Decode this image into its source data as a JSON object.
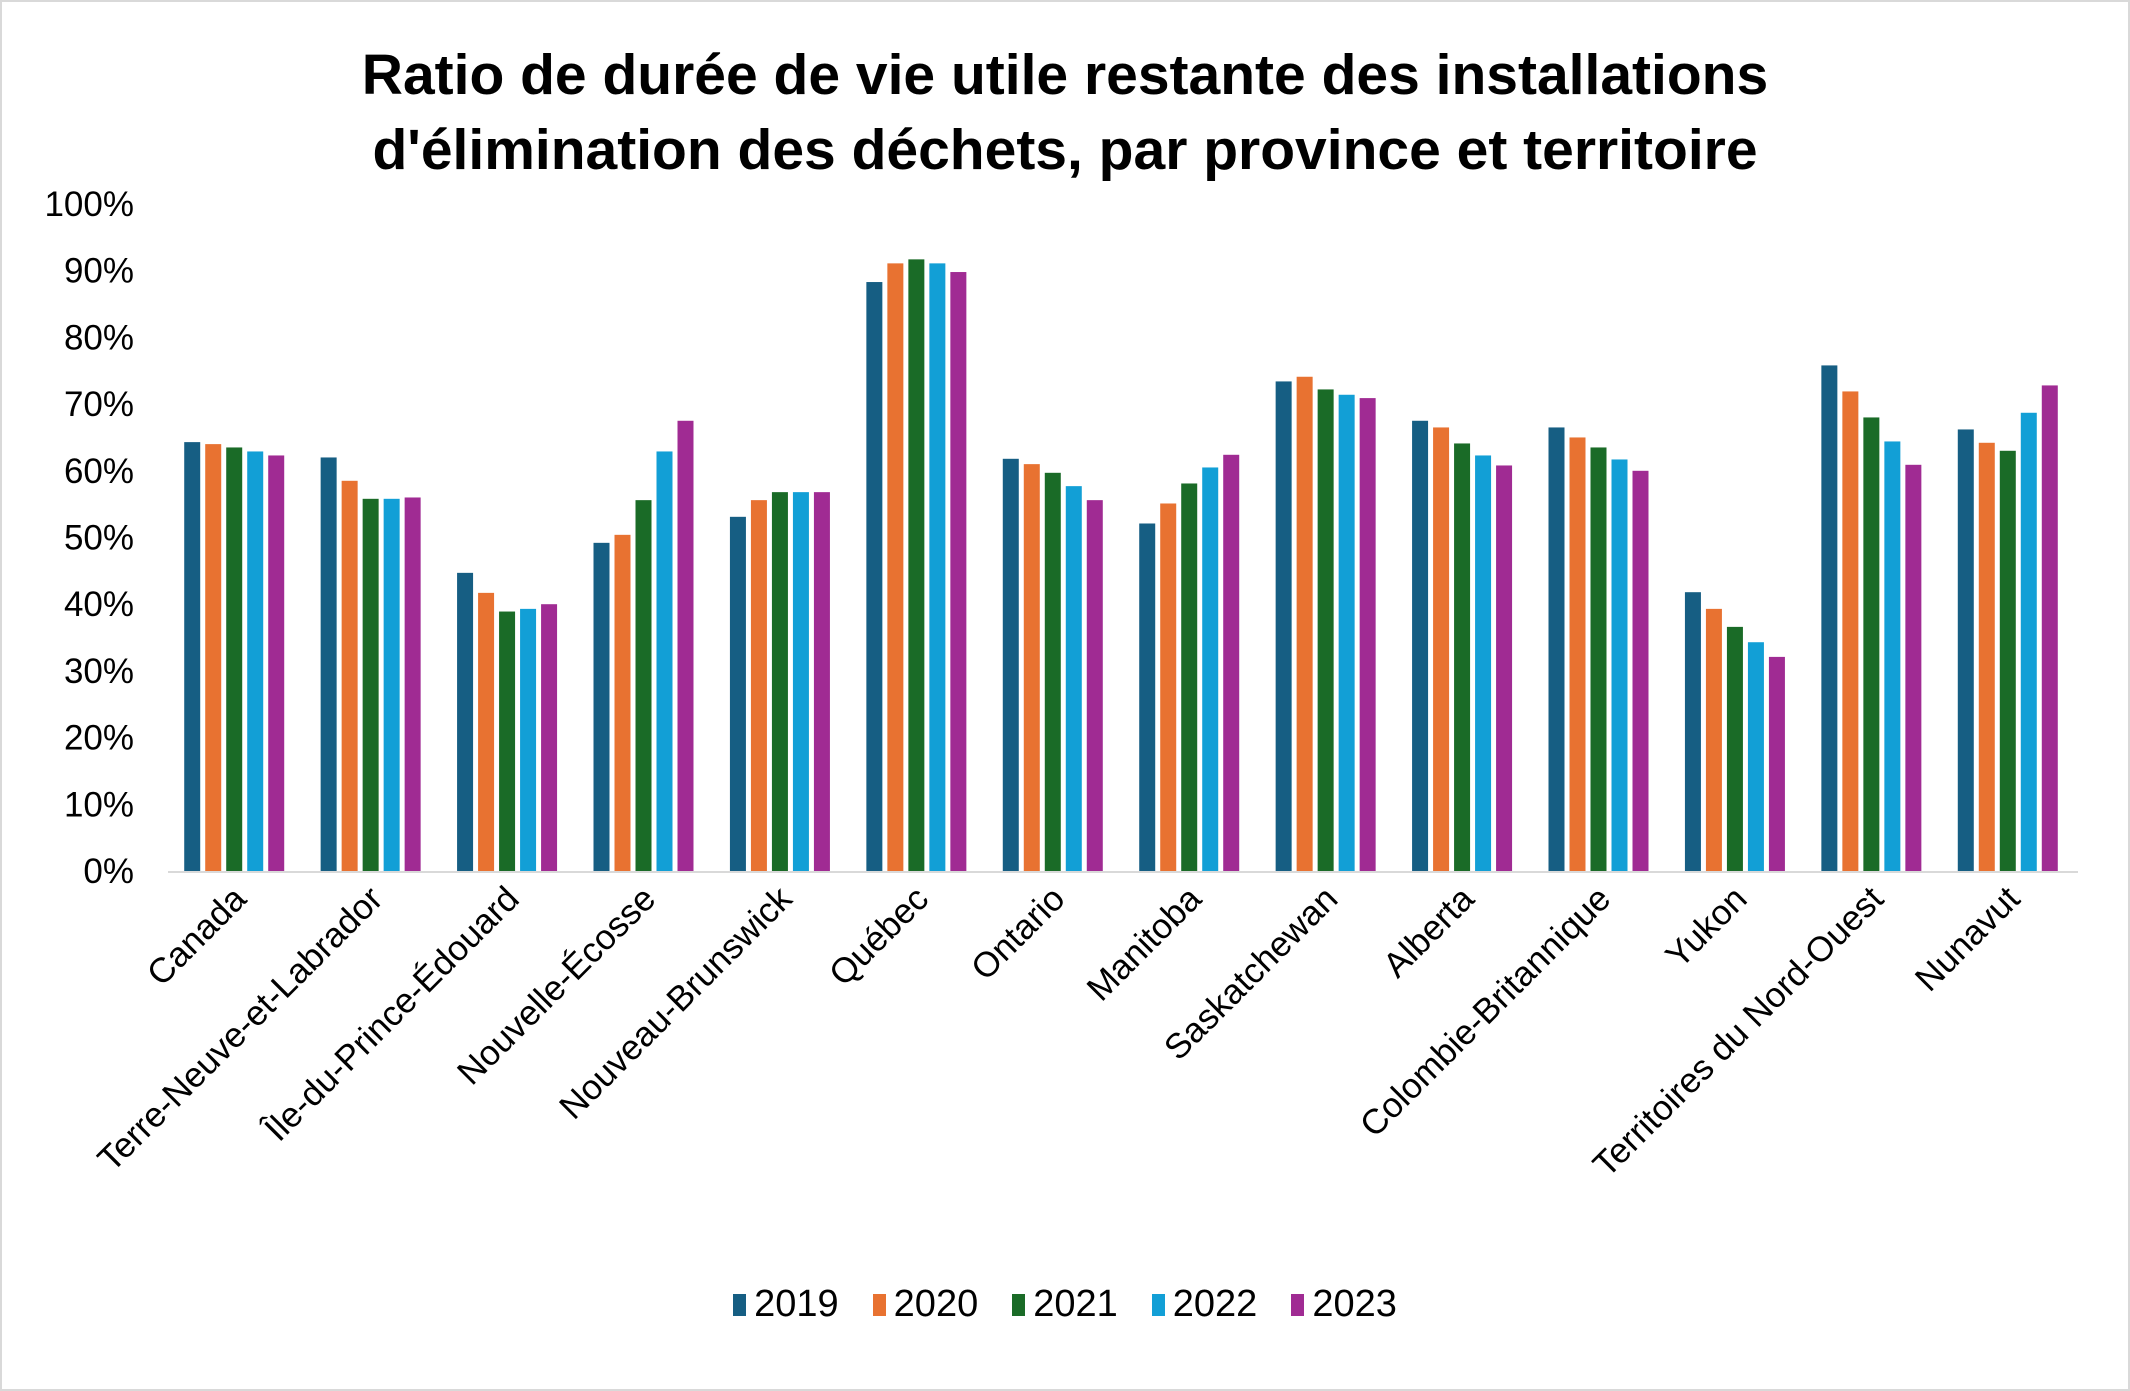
{
  "chart_data": {
    "type": "bar",
    "title": "Ratio de durée de vie utile restante des installations d'élimination des déchets, par province et territoire",
    "title_lines": [
      "Ratio de durée de vie utile restante des installations",
      "d'élimination des déchets, par province et territoire"
    ],
    "xlabel": "",
    "ylabel": "",
    "ylim": [
      0,
      100
    ],
    "y_ticks": [
      "0%",
      "10%",
      "20%",
      "30%",
      "40%",
      "50%",
      "60%",
      "70%",
      "80%",
      "90%",
      "100%"
    ],
    "grid": false,
    "legend_position": "bottom",
    "categories": [
      "Canada",
      "Terre-Neuve-et-Labrador",
      "Île-du-Prince-Édouard",
      "Nouvelle-Écosse",
      "Nouveau-Brunswick",
      "Québec",
      "Ontario",
      "Manitoba",
      "Saskatchewan",
      "Alberta",
      "Colombie-Britannique",
      "Yukon",
      "Territoires du Nord-Ouest",
      "Nunavut"
    ],
    "series": [
      {
        "name": "2019",
        "color": "#165E83",
        "values": [
          64.3,
          62.0,
          44.7,
          49.2,
          53.1,
          88.3,
          61.8,
          52.1,
          73.4,
          67.5,
          66.5,
          41.8,
          75.8,
          66.2
        ]
      },
      {
        "name": "2020",
        "color": "#E87231",
        "values": [
          64.0,
          58.5,
          41.7,
          50.4,
          55.6,
          91.1,
          61.0,
          55.1,
          74.1,
          66.5,
          65.0,
          39.3,
          71.9,
          64.2
        ]
      },
      {
        "name": "2021",
        "color": "#1A6B27",
        "values": [
          63.5,
          55.8,
          38.9,
          55.6,
          56.8,
          91.7,
          59.7,
          58.1,
          72.2,
          64.1,
          63.5,
          36.6,
          68.0,
          63.0
        ]
      },
      {
        "name": "2022",
        "color": "#129FD6",
        "values": [
          62.9,
          55.8,
          39.3,
          62.9,
          56.8,
          91.1,
          57.7,
          60.5,
          71.4,
          62.3,
          61.7,
          34.3,
          64.4,
          68.7
        ]
      },
      {
        "name": "2023",
        "color": "#A02B93",
        "values": [
          62.3,
          56.0,
          40.0,
          67.5,
          56.8,
          89.8,
          55.6,
          62.4,
          70.9,
          60.8,
          60.0,
          32.1,
          60.9,
          72.8
        ]
      }
    ]
  }
}
